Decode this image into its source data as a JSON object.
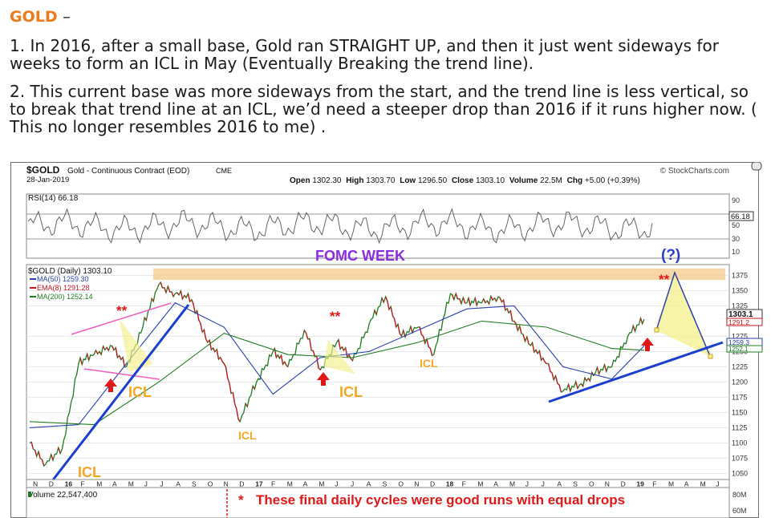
{
  "article": {
    "heading_gold": "GOLD",
    "heading_dash": "–",
    "p1": "1. In 2016, after a small base, Gold ran STRAIGHT UP, and then it just went sideways for weeks to form an ICL in May (Eventually Breaking the trend line).",
    "p2": "2. This current base was more sideways from the start, and the trend line is less vertical, so to break that trend line at an ICL, we’d need a steeper drop than 2016 if it runs higher now.   ( This no longer resembles 2016 to me) ."
  },
  "chart_header": {
    "symbol": "$GOLD",
    "desc": "Gold - Continuous Contract (EOD)",
    "exchange": "CME",
    "date": "28-Jan-2019",
    "source": "© StockCharts.com",
    "ohlc_open_label": "Open",
    "ohlc_open": "1302.30",
    "ohlc_high_label": "High",
    "ohlc_high": "1303.70",
    "ohlc_low_label": "Low",
    "ohlc_low": "1296.50",
    "ohlc_close_label": "Close",
    "ohlc_close": "1303.10",
    "ohlc_vol_label": "Volume",
    "ohlc_vol": "22.5M",
    "ohlc_chg_label": "Chg",
    "ohlc_chg": "+5.00 (+0.39%)"
  },
  "rsi_panel": {
    "label": "RSI(14) 66.18",
    "value_badge": "66.18",
    "ticks": [
      "90",
      "50",
      "30",
      "10"
    ]
  },
  "price_panel": {
    "legend_main": "$GOLD (Daily) 1303.10",
    "legend_ma50": "MA(50) 1259.30",
    "legend_ema8": "EMA(8) 1291.28",
    "legend_ma200": "MA(200) 1252.14",
    "badge_close": "1303.1",
    "badge_ema": "1291.2",
    "badge_ma50": "1259.3",
    "badge_ma200": "1252.1",
    "y_ticks": [
      "1375",
      "1350",
      "1325",
      "1275",
      "1250",
      "1225",
      "1200",
      "1175",
      "1150",
      "1125",
      "1100",
      "1075",
      "1050"
    ],
    "colors": {
      "price_up": "#1e7b1e",
      "price_down": "#c8161e",
      "ma50": "#2a3fb0",
      "ema8": "#c8161e",
      "ma200": "#1e7b1e"
    }
  },
  "x_axis_labels": [
    "N",
    "D",
    "16",
    "F",
    "M",
    "A",
    "M",
    "J",
    "J",
    "A",
    "S",
    "O",
    "N",
    "D",
    "17",
    "F",
    "M",
    "A",
    "M",
    "J",
    "J",
    "A",
    "S",
    "O",
    "N",
    "D",
    "18",
    "F",
    "M",
    "A",
    "M",
    "J",
    "J",
    "A",
    "S",
    "O",
    "N",
    "D",
    "19",
    "F",
    "M",
    "A",
    "M",
    "J"
  ],
  "volume_panel": {
    "label": "Volume 22,547,400",
    "ticks": [
      "80M",
      "60M"
    ]
  },
  "annotations": {
    "fomc": "FOMC WEEK",
    "question": "(?)",
    "stars": "**",
    "icl": "ICL",
    "footnote_star": "*",
    "footnote": "These final daily cycles were good runs with equal drops"
  },
  "chart_data": {
    "type": "line",
    "title": "$GOLD Gold - Continuous Contract (EOD) CME",
    "x_range": [
      "Nov 2015",
      "Jun 2019"
    ],
    "ylim": [
      1040,
      1390
    ],
    "y_scale": "linear",
    "series": [
      {
        "name": "$GOLD (Daily)",
        "x": [
          "2015-11",
          "2015-12",
          "2016-01",
          "2016-02",
          "2016-03",
          "2016-04",
          "2016-05",
          "2016-06",
          "2016-07",
          "2016-08",
          "2016-09",
          "2016-10",
          "2016-11",
          "2016-12",
          "2017-01",
          "2017-02",
          "2017-03",
          "2017-04",
          "2017-05",
          "2017-06",
          "2017-07",
          "2017-08",
          "2017-09",
          "2017-10",
          "2017-11",
          "2017-12",
          "2018-01",
          "2018-02",
          "2018-03",
          "2018-04",
          "2018-05",
          "2018-06",
          "2018-07",
          "2018-08",
          "2018-09",
          "2018-10",
          "2018-11",
          "2018-12",
          "2019-01"
        ],
        "values": [
          1100,
          1065,
          1090,
          1230,
          1245,
          1260,
          1225,
          1290,
          1360,
          1345,
          1335,
          1265,
          1230,
          1135,
          1200,
          1250,
          1225,
          1285,
          1220,
          1265,
          1235,
          1295,
          1340,
          1275,
          1290,
          1245,
          1345,
          1330,
          1330,
          1340,
          1300,
          1260,
          1230,
          1185,
          1195,
          1215,
          1225,
          1275,
          1303.1
        ]
      },
      {
        "name": "MA(50)",
        "x": [
          "2015-11",
          "2016-02",
          "2016-05",
          "2016-08",
          "2016-11",
          "2017-02",
          "2017-05",
          "2017-08",
          "2017-11",
          "2018-02",
          "2018-05",
          "2018-08",
          "2018-11",
          "2019-01"
        ],
        "values": [
          1125,
          1130,
          1230,
          1330,
          1290,
          1180,
          1240,
          1250,
          1285,
          1320,
          1325,
          1225,
          1205,
          1259.3
        ]
      },
      {
        "name": "EMA(8)",
        "x": [
          "2019-01"
        ],
        "values": [
          1291.28
        ]
      },
      {
        "name": "MA(200)",
        "x": [
          "2015-11",
          "2016-03",
          "2016-07",
          "2016-11",
          "2017-03",
          "2017-07",
          "2017-11",
          "2018-03",
          "2018-07",
          "2018-11",
          "2019-01"
        ],
        "values": [
          1135,
          1130,
          1200,
          1280,
          1245,
          1240,
          1265,
          1300,
          1290,
          1255,
          1252.14
        ]
      }
    ],
    "rsi": {
      "name": "RSI(14)",
      "last": 66.18,
      "levels": [
        70,
        30
      ],
      "range": [
        10,
        90
      ]
    }
  }
}
